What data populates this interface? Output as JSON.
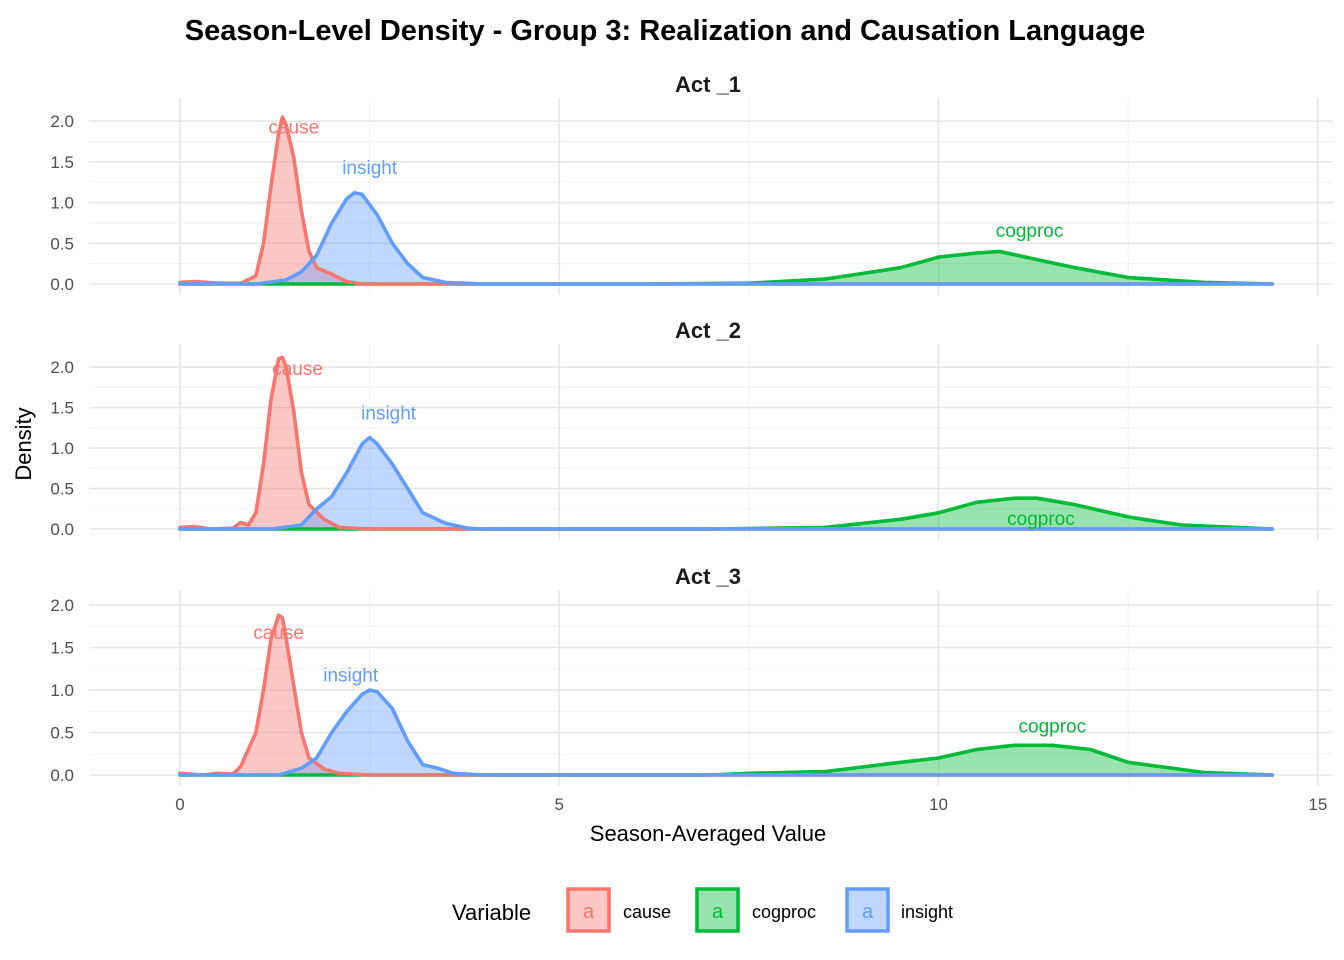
{
  "chart_data": {
    "type": "area",
    "title": "Season-Level Density -  Group 3: Realization and Causation Language",
    "xlabel": "Season-Averaged Value",
    "ylabel": "Density",
    "xlim": [
      -1.2,
      15.2
    ],
    "x_ticks": [
      "0",
      "5",
      "10",
      "15"
    ],
    "x_tick_values": [
      0,
      5,
      10,
      15
    ],
    "grid": true,
    "legend": {
      "title": "Variable",
      "position": "bottom",
      "key_glyph": "a",
      "items": [
        {
          "name": "cause",
          "color": "#F8766D"
        },
        {
          "name": "cogproc",
          "color": "#00BA38"
        },
        {
          "name": "insight",
          "color": "#619CFF"
        }
      ]
    },
    "panels": [
      {
        "name": "Act _1",
        "ylim": [
          0,
          2.1
        ],
        "y_ticks": [
          "0.0",
          "0.5",
          "1.0",
          "1.5",
          "2.0"
        ],
        "y_tick_values": [
          0,
          0.5,
          1.0,
          1.5,
          2.0
        ],
        "labels": [
          {
            "text": "cause",
            "x": 1.5,
            "y": 1.85
          },
          {
            "text": "insight",
            "x": 2.5,
            "y": 1.35
          },
          {
            "text": "cogproc",
            "x": 11.2,
            "y": 0.58
          }
        ],
        "series": [
          {
            "name": "cause",
            "points": [
              [
                0,
                0.02
              ],
              [
                0.2,
                0.03
              ],
              [
                0.5,
                0.01
              ],
              [
                0.8,
                0.01
              ],
              [
                1.0,
                0.1
              ],
              [
                1.1,
                0.5
              ],
              [
                1.2,
                1.2
              ],
              [
                1.3,
                1.85
              ],
              [
                1.35,
                2.05
              ],
              [
                1.4,
                1.95
              ],
              [
                1.5,
                1.55
              ],
              [
                1.6,
                0.9
              ],
              [
                1.7,
                0.4
              ],
              [
                1.8,
                0.2
              ],
              [
                2.0,
                0.12
              ],
              [
                2.2,
                0.03
              ],
              [
                2.4,
                0.0
              ],
              [
                3.0,
                0.0
              ],
              [
                14.4,
                0.0
              ]
            ]
          },
          {
            "name": "insight",
            "points": [
              [
                0,
                0.0
              ],
              [
                1.0,
                0.0
              ],
              [
                1.4,
                0.05
              ],
              [
                1.6,
                0.15
              ],
              [
                1.8,
                0.35
              ],
              [
                2.0,
                0.75
              ],
              [
                2.2,
                1.05
              ],
              [
                2.3,
                1.12
              ],
              [
                2.4,
                1.1
              ],
              [
                2.6,
                0.85
              ],
              [
                2.8,
                0.5
              ],
              [
                3.0,
                0.25
              ],
              [
                3.2,
                0.08
              ],
              [
                3.5,
                0.02
              ],
              [
                4.0,
                0.0
              ],
              [
                14.4,
                0.0
              ]
            ]
          },
          {
            "name": "cogproc",
            "points": [
              [
                0,
                0.0
              ],
              [
                6.0,
                0.0
              ],
              [
                7.5,
                0.01
              ],
              [
                8.5,
                0.06
              ],
              [
                9.5,
                0.2
              ],
              [
                10.0,
                0.33
              ],
              [
                10.5,
                0.38
              ],
              [
                10.8,
                0.4
              ],
              [
                11.3,
                0.3
              ],
              [
                11.8,
                0.2
              ],
              [
                12.5,
                0.08
              ],
              [
                13.5,
                0.02
              ],
              [
                14.4,
                0.0
              ]
            ]
          }
        ]
      },
      {
        "name": "Act _2",
        "ylim": [
          0,
          2.1
        ],
        "y_ticks": [
          "0.0",
          "0.5",
          "1.0",
          "1.5",
          "2.0"
        ],
        "y_tick_values": [
          0,
          0.5,
          1.0,
          1.5,
          2.0
        ],
        "labels": [
          {
            "text": "cause",
            "x": 1.55,
            "y": 1.9
          },
          {
            "text": "insight",
            "x": 2.75,
            "y": 1.35
          },
          {
            "text": "cogproc",
            "x": 11.35,
            "y": 0.05
          }
        ],
        "series": [
          {
            "name": "cause",
            "points": [
              [
                0,
                0.02
              ],
              [
                0.2,
                0.03
              ],
              [
                0.4,
                0.0
              ],
              [
                0.7,
                0.01
              ],
              [
                0.8,
                0.08
              ],
              [
                0.9,
                0.05
              ],
              [
                1.0,
                0.2
              ],
              [
                1.1,
                0.8
              ],
              [
                1.2,
                1.6
              ],
              [
                1.3,
                2.1
              ],
              [
                1.35,
                2.12
              ],
              [
                1.4,
                2.0
              ],
              [
                1.5,
                1.45
              ],
              [
                1.6,
                0.7
              ],
              [
                1.7,
                0.3
              ],
              [
                1.9,
                0.12
              ],
              [
                2.1,
                0.02
              ],
              [
                2.5,
                0.0
              ],
              [
                14.4,
                0.0
              ]
            ]
          },
          {
            "name": "insight",
            "points": [
              [
                0,
                0.0
              ],
              [
                1.2,
                0.0
              ],
              [
                1.6,
                0.05
              ],
              [
                1.8,
                0.25
              ],
              [
                2.0,
                0.4
              ],
              [
                2.2,
                0.7
              ],
              [
                2.4,
                1.05
              ],
              [
                2.5,
                1.13
              ],
              [
                2.6,
                1.05
              ],
              [
                2.8,
                0.8
              ],
              [
                3.0,
                0.5
              ],
              [
                3.2,
                0.2
              ],
              [
                3.5,
                0.07
              ],
              [
                3.8,
                0.01
              ],
              [
                4.0,
                0.0
              ],
              [
                14.4,
                0.0
              ]
            ]
          },
          {
            "name": "cogproc",
            "points": [
              [
                0,
                0.0
              ],
              [
                7.0,
                0.0
              ],
              [
                8.5,
                0.02
              ],
              [
                9.5,
                0.12
              ],
              [
                10.0,
                0.2
              ],
              [
                10.5,
                0.33
              ],
              [
                11.0,
                0.38
              ],
              [
                11.3,
                0.38
              ],
              [
                11.8,
                0.3
              ],
              [
                12.5,
                0.15
              ],
              [
                13.2,
                0.05
              ],
              [
                14.4,
                0.0
              ]
            ]
          }
        ]
      },
      {
        "name": "Act _3",
        "ylim": [
          0,
          2.0
        ],
        "y_ticks": [
          "0.0",
          "0.5",
          "1.0",
          "1.5",
          "2.0"
        ],
        "y_tick_values": [
          0,
          0.5,
          1.0,
          1.5,
          2.0
        ],
        "labels": [
          {
            "text": "cause",
            "x": 1.3,
            "y": 1.6
          },
          {
            "text": "insight",
            "x": 2.25,
            "y": 1.1
          },
          {
            "text": "cogproc",
            "x": 11.5,
            "y": 0.5
          }
        ],
        "series": [
          {
            "name": "cause",
            "points": [
              [
                0,
                0.02
              ],
              [
                0.3,
                0.0
              ],
              [
                0.5,
                0.02
              ],
              [
                0.7,
                0.01
              ],
              [
                0.8,
                0.1
              ],
              [
                0.9,
                0.3
              ],
              [
                1.0,
                0.5
              ],
              [
                1.1,
                1.0
              ],
              [
                1.2,
                1.6
              ],
              [
                1.3,
                1.88
              ],
              [
                1.35,
                1.85
              ],
              [
                1.4,
                1.6
              ],
              [
                1.5,
                1.05
              ],
              [
                1.6,
                0.5
              ],
              [
                1.7,
                0.2
              ],
              [
                1.9,
                0.07
              ],
              [
                2.1,
                0.02
              ],
              [
                2.5,
                0.0
              ],
              [
                14.4,
                0.0
              ]
            ]
          },
          {
            "name": "insight",
            "points": [
              [
                0,
                0.0
              ],
              [
                1.3,
                0.0
              ],
              [
                1.6,
                0.08
              ],
              [
                1.8,
                0.2
              ],
              [
                2.0,
                0.5
              ],
              [
                2.2,
                0.75
              ],
              [
                2.4,
                0.95
              ],
              [
                2.5,
                1.0
              ],
              [
                2.6,
                0.98
              ],
              [
                2.8,
                0.78
              ],
              [
                3.0,
                0.4
              ],
              [
                3.2,
                0.12
              ],
              [
                3.4,
                0.08
              ],
              [
                3.6,
                0.02
              ],
              [
                4.0,
                0.0
              ],
              [
                14.4,
                0.0
              ]
            ]
          },
          {
            "name": "cogproc",
            "points": [
              [
                0,
                0.0
              ],
              [
                7.0,
                0.0
              ],
              [
                7.5,
                0.02
              ],
              [
                8.5,
                0.04
              ],
              [
                9.5,
                0.15
              ],
              [
                10.0,
                0.2
              ],
              [
                10.5,
                0.3
              ],
              [
                11.0,
                0.35
              ],
              [
                11.5,
                0.35
              ],
              [
                12.0,
                0.3
              ],
              [
                12.5,
                0.15
              ],
              [
                13.5,
                0.03
              ],
              [
                14.4,
                0.0
              ]
            ]
          }
        ]
      }
    ]
  }
}
